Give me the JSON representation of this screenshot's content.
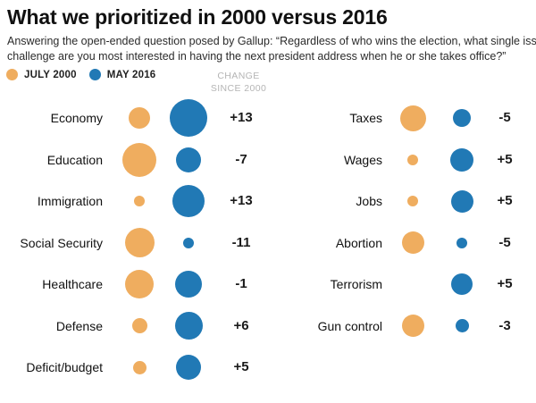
{
  "title": "What we prioritized in 2000 versus 2016",
  "subtitle_line1": "Answering the open-ended question posed by Gallup: “Regardless of who wins the election, what single issue or",
  "subtitle_line2": "challenge are you most interested in having the next president address when he or she takes office?”",
  "legend": {
    "july_2000": "JULY 2000",
    "may_2016": "MAY 2016",
    "change_header_line1": "CHANGE",
    "change_header_line2": "SINCE 2000"
  },
  "colors": {
    "orange_2000": "#EFAD5F",
    "blue_2016": "#2179B5",
    "change_header_gray": "#B5B5B5",
    "text": "#1A1A1A"
  },
  "chart_data": {
    "type": "bubble_comparison",
    "description": "Bubble area encodes share of mentions for each issue; orange = July 2000, blue = May 2016; number is change in percentage points since 2000. Bubble sizes given as on-screen diameters in px.",
    "series_names": [
      "JULY 2000",
      "MAY 2016"
    ],
    "legend_position": "top-left",
    "columns": [
      {
        "rows": [
          {
            "label": "Economy",
            "size_2000": 24,
            "size_2016": 42,
            "change": "+13"
          },
          {
            "label": "Education",
            "size_2000": 38,
            "size_2016": 28,
            "change": "-7"
          },
          {
            "label": "Immigration",
            "size_2000": 12,
            "size_2016": 36,
            "change": "+13"
          },
          {
            "label": "Social Security",
            "size_2000": 33,
            "size_2016": 12,
            "change": "-11"
          },
          {
            "label": "Healthcare",
            "size_2000": 32,
            "size_2016": 30,
            "change": "-1"
          },
          {
            "label": "Defense",
            "size_2000": 17,
            "size_2016": 31,
            "change": "+6"
          },
          {
            "label": "Deficit/budget",
            "size_2000": 15,
            "size_2016": 28,
            "change": "+5"
          }
        ]
      },
      {
        "rows": [
          {
            "label": "Taxes",
            "size_2000": 29,
            "size_2016": 20,
            "change": "-5"
          },
          {
            "label": "Wages",
            "size_2000": 12,
            "size_2016": 26,
            "change": "+5"
          },
          {
            "label": "Jobs",
            "size_2000": 12,
            "size_2016": 25,
            "change": "+5"
          },
          {
            "label": "Abortion",
            "size_2000": 25,
            "size_2016": 12,
            "change": "-5"
          },
          {
            "label": "Terrorism",
            "size_2000": 0,
            "size_2016": 24,
            "change": "+5"
          },
          {
            "label": "Gun control",
            "size_2000": 25,
            "size_2016": 15,
            "change": "-3"
          }
        ]
      }
    ]
  }
}
